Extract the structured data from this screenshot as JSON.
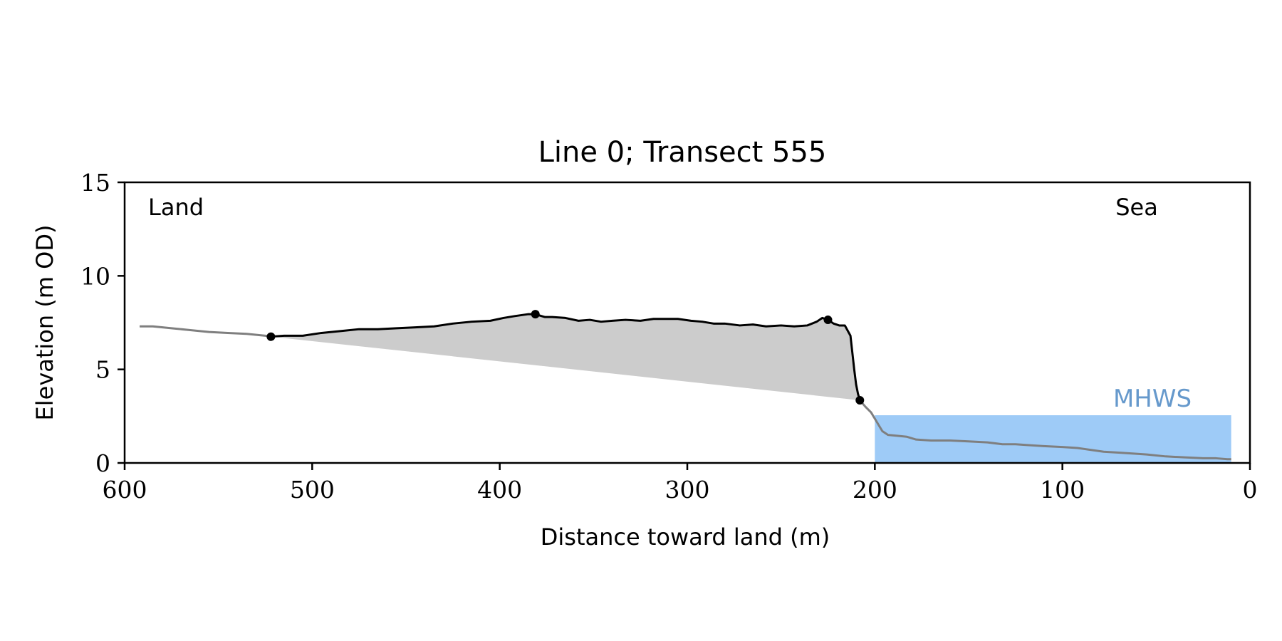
{
  "chart_data": {
    "type": "area",
    "title": "Line 0; Transect 555",
    "xlabel": "Distance toward land (m)",
    "ylabel": "Elevation (m OD)",
    "xlim": [
      600,
      0
    ],
    "ylim": [
      0,
      15
    ],
    "x_ticks": [
      600,
      500,
      400,
      300,
      200,
      100,
      0
    ],
    "y_ticks": [
      0,
      5,
      10,
      15
    ],
    "grid": false,
    "annotations": {
      "land": "Land",
      "sea": "Sea",
      "mhws": "MHWS"
    },
    "mhws": {
      "level": 2.55,
      "x_from": 200,
      "x_to": 10,
      "color": "#9ecbf7",
      "text_color": "#6699cc"
    },
    "colors": {
      "profile": "#000000",
      "profile_context": "#7f7f7f",
      "fill": "#cccccc"
    },
    "series": [
      {
        "x": [
          592,
          585,
          575,
          565,
          555,
          545,
          535,
          525,
          522
        ],
        "y": [
          7.3,
          7.3,
          7.2,
          7.1,
          7.0,
          6.95,
          6.9,
          6.8,
          6.75
        ]
      },
      {
        "x": [
          522,
          515,
          505,
          495,
          485,
          475,
          465,
          455,
          445,
          435,
          425,
          415,
          405,
          398,
          392,
          385,
          381,
          376,
          372,
          365,
          358,
          352,
          346,
          340,
          333,
          325,
          318,
          312,
          305,
          298,
          292,
          286,
          280,
          272,
          265,
          258,
          250,
          243,
          236,
          231,
          228,
          225,
          222,
          219,
          216,
          213,
          211,
          210,
          209,
          208
        ],
        "y": [
          6.75,
          6.8,
          6.8,
          6.95,
          7.05,
          7.15,
          7.15,
          7.2,
          7.25,
          7.3,
          7.45,
          7.55,
          7.6,
          7.75,
          7.85,
          7.95,
          7.95,
          7.8,
          7.8,
          7.75,
          7.6,
          7.65,
          7.55,
          7.6,
          7.65,
          7.6,
          7.7,
          7.7,
          7.7,
          7.6,
          7.55,
          7.45,
          7.45,
          7.35,
          7.4,
          7.3,
          7.35,
          7.3,
          7.35,
          7.55,
          7.75,
          7.65,
          7.45,
          7.35,
          7.35,
          6.8,
          5.0,
          4.2,
          3.7,
          3.35
        ]
      },
      {
        "x": [
          208,
          205,
          202,
          199,
          196,
          193,
          188,
          183,
          178,
          170,
          160,
          150,
          140,
          132,
          125,
          118,
          110,
          100,
          92,
          85,
          78,
          70,
          62,
          55,
          45,
          35,
          25,
          18,
          12,
          10
        ],
        "y": [
          3.35,
          3.0,
          2.7,
          2.2,
          1.7,
          1.5,
          1.45,
          1.4,
          1.25,
          1.2,
          1.2,
          1.15,
          1.1,
          1.0,
          1.0,
          0.95,
          0.9,
          0.85,
          0.8,
          0.7,
          0.6,
          0.55,
          0.5,
          0.45,
          0.35,
          0.3,
          0.25,
          0.25,
          0.2,
          0.2
        ]
      }
    ],
    "baseline": {
      "x": [
        522,
        208
      ],
      "y": [
        6.75,
        3.35
      ]
    },
    "markers": {
      "x": [
        522,
        381,
        225,
        208
      ],
      "y": [
        6.75,
        7.95,
        7.65,
        3.35
      ]
    }
  }
}
